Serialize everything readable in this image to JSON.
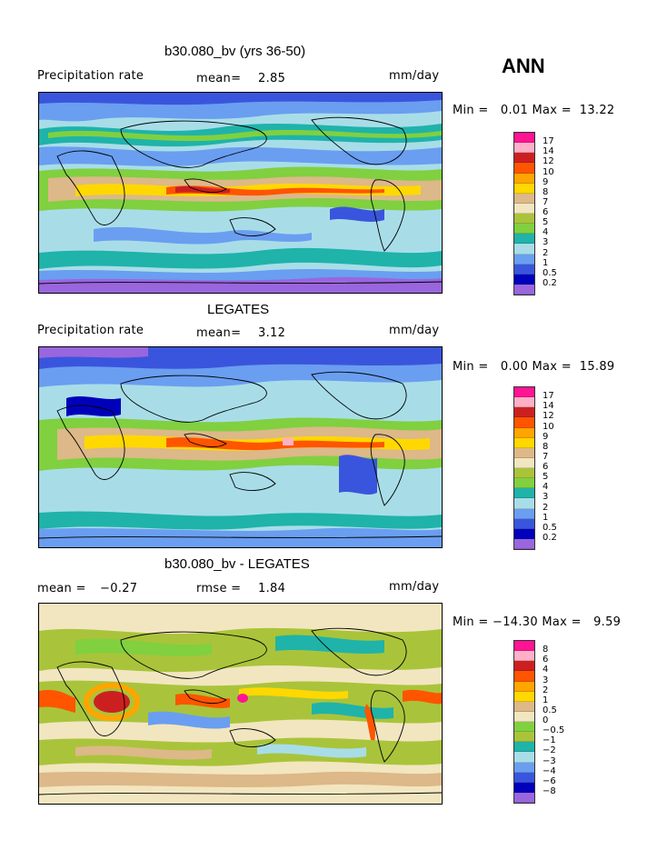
{
  "season": "ANN",
  "colors_abs": [
    "#9966dd",
    "#0000bb",
    "#3a55dd",
    "#6a9ef0",
    "#a8dde8",
    "#1fb3aa",
    "#80d040",
    "#a9c43a",
    "#f2e6c0",
    "#ddb888",
    "#ffd800",
    "#ffa500",
    "#ff5500",
    "#cc2020",
    "#ffb0c8",
    "#ff1493"
  ],
  "colors_diff": [
    "#9966dd",
    "#0000bb",
    "#3a55dd",
    "#6a9ef0",
    "#a8dde8",
    "#1fb3aa",
    "#a9c43a",
    "#80d040",
    "#f2e6c0",
    "#ddb888",
    "#ffd800",
    "#ffa500",
    "#ff5500",
    "#cc2020",
    "#ffb0c8",
    "#ff1493"
  ],
  "panels": [
    {
      "title": "b30.080_bv (yrs 36-50)",
      "left_label": "Precipitation rate",
      "mean_label": "mean=",
      "mean_value": "2.85",
      "units": "mm/day",
      "min_label": "Min =",
      "min_value": "0.01",
      "max_label": "Max =",
      "max_value": "13.22",
      "levels": [
        "17",
        "14",
        "12",
        "10",
        "9",
        "8",
        "7",
        "6",
        "5",
        "4",
        "3",
        "2",
        "1",
        "0.5",
        "0.2"
      ]
    },
    {
      "title": "LEGATES",
      "left_label": "Precipitation rate",
      "mean_label": "mean=",
      "mean_value": "3.12",
      "units": "mm/day",
      "min_label": "Min =",
      "min_value": "0.00",
      "max_label": "Max =",
      "max_value": "15.89",
      "levels": [
        "17",
        "14",
        "12",
        "10",
        "9",
        "8",
        "7",
        "6",
        "5",
        "4",
        "3",
        "2",
        "1",
        "0.5",
        "0.2"
      ]
    },
    {
      "title": "b30.080_bv - LEGATES",
      "left_label": "mean =",
      "mean_label": "",
      "mean_value": "−0.27",
      "rmse_label": "rmse =",
      "rmse_value": "1.84",
      "units": "mm/day",
      "min_label": "Min =",
      "min_value": "−14.30",
      "max_label": "Max =",
      "max_value": "9.59",
      "levels": [
        "8",
        "6",
        "4",
        "3",
        "2",
        "1",
        "0.5",
        "0",
        "−0.5",
        "−1",
        "−2",
        "−3",
        "−4",
        "−6",
        "−8"
      ]
    }
  ]
}
